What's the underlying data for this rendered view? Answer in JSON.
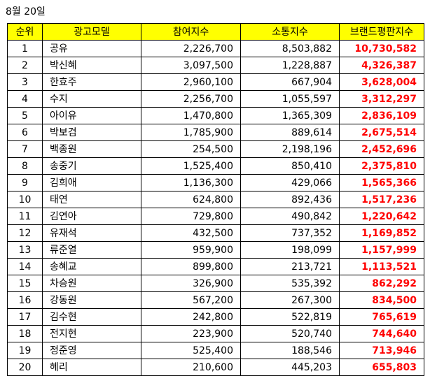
{
  "date": "8월 20일",
  "headers": [
    "순위",
    "광고모델",
    "참여지수",
    "소통지수",
    "브랜드평판지수"
  ],
  "rows": [
    {
      "rank": "1",
      "name": "공유",
      "participation": "2,226,700",
      "communication": "8,503,882",
      "brand": "10,730,582"
    },
    {
      "rank": "2",
      "name": "박신혜",
      "participation": "3,097,500",
      "communication": "1,228,887",
      "brand": "4,326,387"
    },
    {
      "rank": "3",
      "name": "한효주",
      "participation": "2,960,100",
      "communication": "667,904",
      "brand": "3,628,004"
    },
    {
      "rank": "4",
      "name": "수지",
      "participation": "2,256,700",
      "communication": "1,055,597",
      "brand": "3,312,297"
    },
    {
      "rank": "5",
      "name": "아이유",
      "participation": "1,470,800",
      "communication": "1,365,309",
      "brand": "2,836,109"
    },
    {
      "rank": "6",
      "name": "박보검",
      "participation": "1,785,900",
      "communication": "889,614",
      "brand": "2,675,514"
    },
    {
      "rank": "7",
      "name": "백종원",
      "participation": "254,500",
      "communication": "2,198,196",
      "brand": "2,452,696"
    },
    {
      "rank": "8",
      "name": "송중기",
      "participation": "1,525,400",
      "communication": "850,410",
      "brand": "2,375,810"
    },
    {
      "rank": "9",
      "name": "김희애",
      "participation": "1,136,300",
      "communication": "429,066",
      "brand": "1,565,366"
    },
    {
      "rank": "10",
      "name": "태연",
      "participation": "624,800",
      "communication": "892,436",
      "brand": "1,517,236"
    },
    {
      "rank": "11",
      "name": "김연아",
      "participation": "729,800",
      "communication": "490,842",
      "brand": "1,220,642"
    },
    {
      "rank": "12",
      "name": "유재석",
      "participation": "432,500",
      "communication": "737,352",
      "brand": "1,169,852"
    },
    {
      "rank": "13",
      "name": "류준열",
      "participation": "959,900",
      "communication": "198,099",
      "brand": "1,157,999"
    },
    {
      "rank": "14",
      "name": "송혜교",
      "participation": "899,800",
      "communication": "213,721",
      "brand": "1,113,521"
    },
    {
      "rank": "15",
      "name": "차승원",
      "participation": "326,900",
      "communication": "535,392",
      "brand": "862,292"
    },
    {
      "rank": "16",
      "name": "강동원",
      "participation": "567,200",
      "communication": "267,300",
      "brand": "834,500"
    },
    {
      "rank": "17",
      "name": "김수현",
      "participation": "242,800",
      "communication": "522,819",
      "brand": "765,619"
    },
    {
      "rank": "18",
      "name": "전지현",
      "participation": "223,900",
      "communication": "520,740",
      "brand": "744,640"
    },
    {
      "rank": "19",
      "name": "정준영",
      "participation": "525,400",
      "communication": "188,546",
      "brand": "713,946"
    },
    {
      "rank": "20",
      "name": "헤리",
      "participation": "210,600",
      "communication": "445,203",
      "brand": "655,803"
    }
  ],
  "colors": {
    "header_bg": "#ffff00",
    "brand_value": "#ff0000",
    "border": "#000000"
  }
}
